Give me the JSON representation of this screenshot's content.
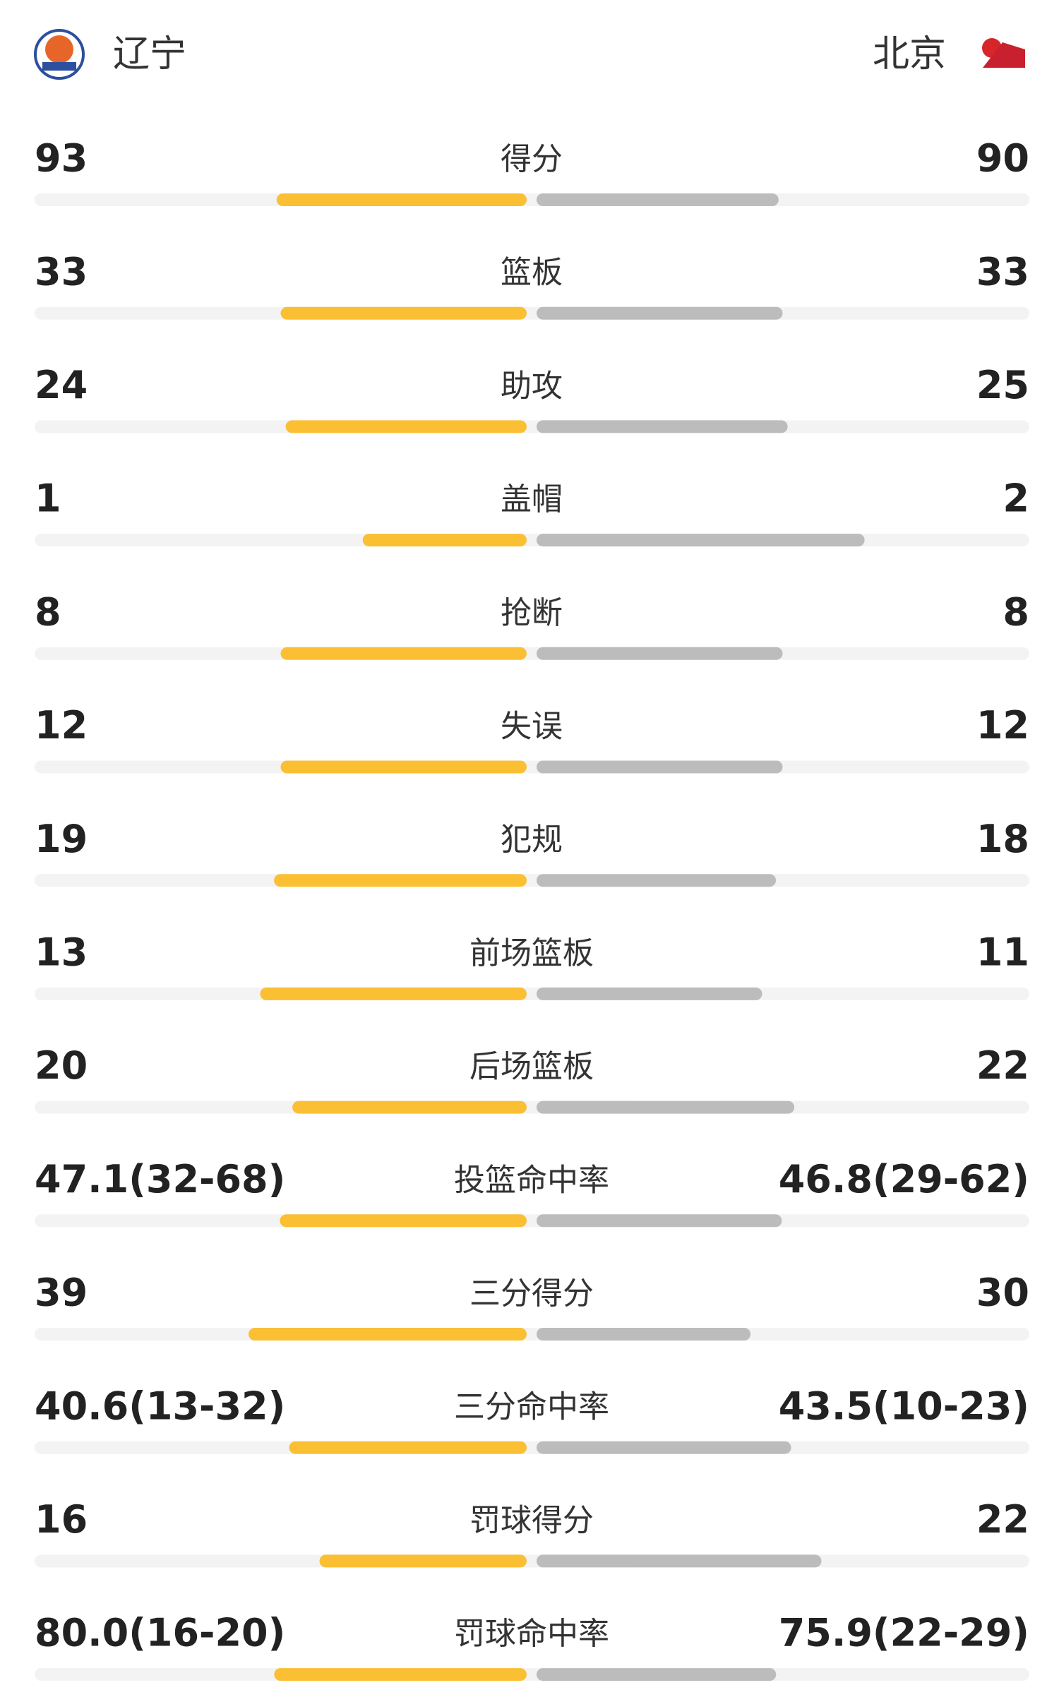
{
  "header": {
    "home": "辽宁",
    "away": "北京"
  },
  "stats": [
    {
      "label": "得分",
      "values": [
        93,
        90
      ]
    },
    {
      "label": "篮板",
      "values": [
        33,
        33
      ]
    },
    {
      "label": "助攻",
      "values": [
        24,
        25
      ]
    },
    {
      "label": "盖帽",
      "values": [
        1,
        2
      ]
    },
    {
      "label": "抢断",
      "values": [
        8,
        8
      ]
    },
    {
      "label": "失误",
      "values": [
        12,
        12
      ]
    },
    {
      "label": "犯规",
      "values": [
        19,
        18
      ]
    },
    {
      "label": "前场篮板",
      "values": [
        13,
        11
      ]
    },
    {
      "label": "后场篮板",
      "values": [
        20,
        22
      ]
    },
    {
      "label": "投篮命中率",
      "values": [
        47.1,
        46.8
      ],
      "value_labels": [
        "47.1(32-68)",
        "46.8(29-62)"
      ]
    },
    {
      "label": "三分得分",
      "values": [
        39,
        30
      ]
    },
    {
      "label": "三分命中率",
      "values": [
        40.6,
        43.5
      ],
      "value_labels": [
        "40.6(13-32)",
        "43.5(10-23)"
      ]
    },
    {
      "label": "罚球得分",
      "values": [
        16,
        22
      ]
    },
    {
      "label": "罚球命中率",
      "values": [
        80.0,
        75.9
      ],
      "value_labels": [
        "80.0(16-20)",
        "75.9(22-29)"
      ]
    }
  ]
}
